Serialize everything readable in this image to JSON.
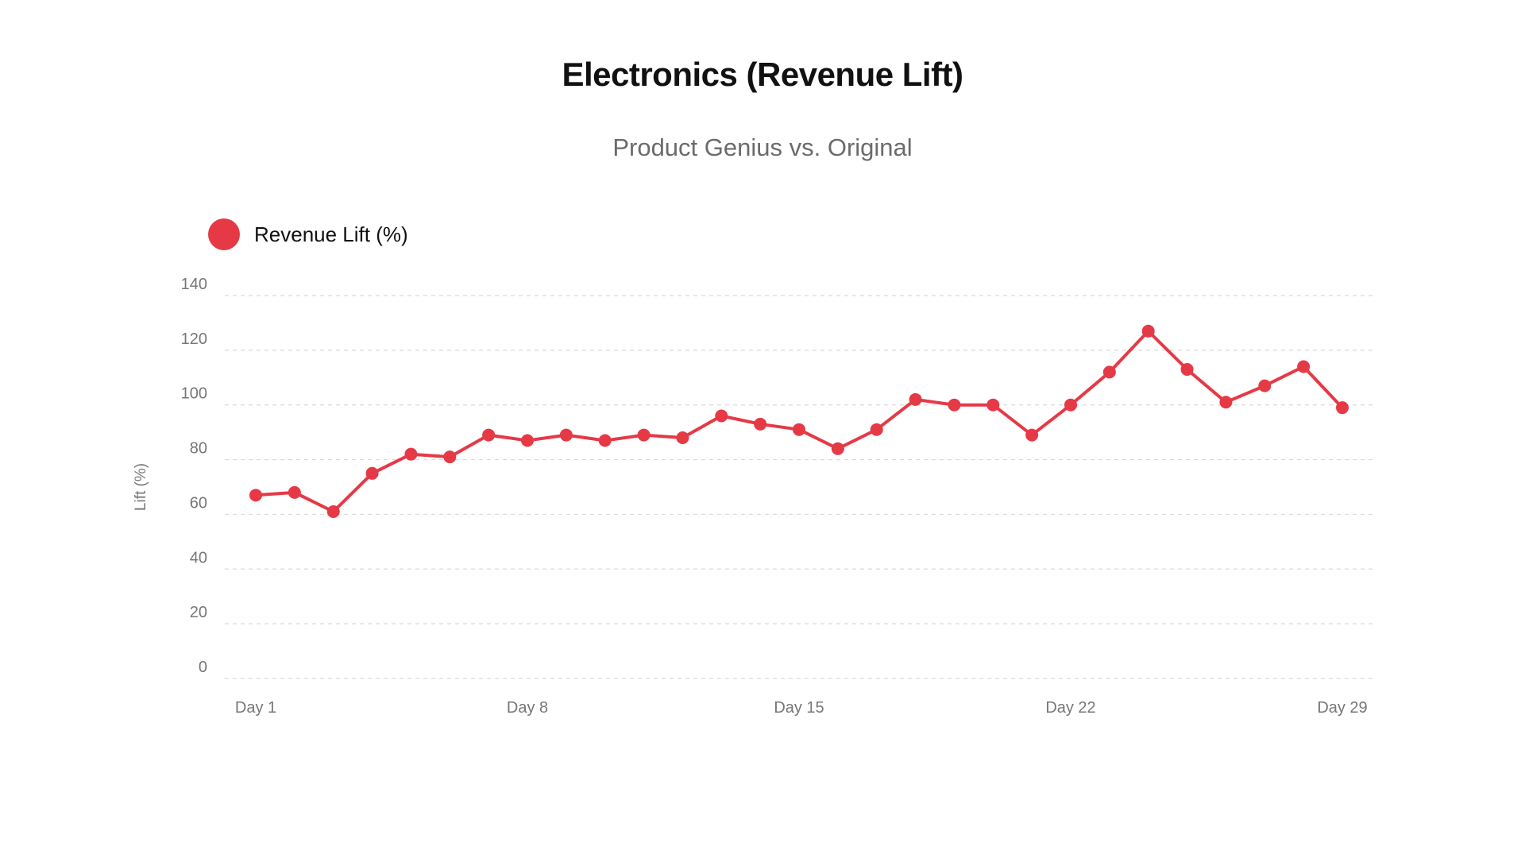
{
  "chart_data": {
    "type": "line",
    "title": "Electronics (Revenue Lift)",
    "subtitle": "Product Genius vs. Original",
    "xlabel": "",
    "ylabel": "Lift (%)",
    "ylim": [
      0,
      140
    ],
    "yticks": [
      0,
      20,
      40,
      60,
      80,
      100,
      120,
      140
    ],
    "x": [
      1,
      2,
      3,
      4,
      5,
      6,
      7,
      8,
      9,
      10,
      11,
      12,
      13,
      14,
      15,
      16,
      17,
      18,
      19,
      20,
      21,
      22,
      23,
      24,
      25,
      26,
      27,
      28,
      29
    ],
    "xticks": [
      1,
      8,
      15,
      22,
      29
    ],
    "xtick_labels": [
      "Day 1",
      "Day 8",
      "Day 15",
      "Day 22",
      "Day 29"
    ],
    "grid": true,
    "legend_position": "top-left",
    "series": [
      {
        "name": "Revenue Lift (%)",
        "color": "#e63946",
        "values": [
          67,
          68,
          61,
          75,
          82,
          81,
          89,
          87,
          89,
          87,
          89,
          88,
          96,
          93,
          91,
          84,
          91,
          102,
          100,
          100,
          89,
          100,
          112,
          127,
          113,
          101,
          107,
          114,
          99
        ]
      }
    ]
  }
}
